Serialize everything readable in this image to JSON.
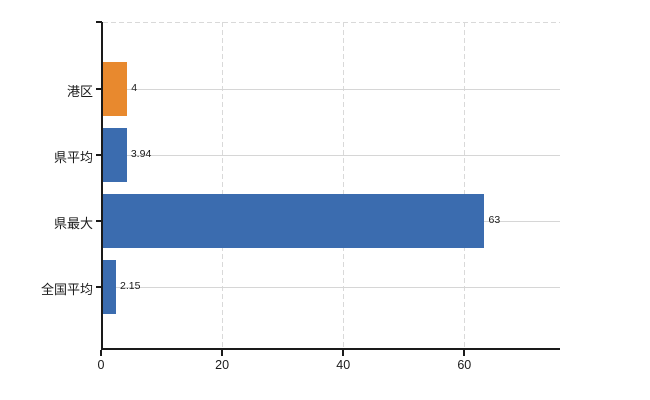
{
  "chart_data": {
    "type": "bar",
    "orientation": "horizontal",
    "title": "",
    "categories": [
      "港区",
      "県平均",
      "県最大",
      "全国平均"
    ],
    "values": [
      4,
      3.94,
      63,
      2.15
    ],
    "value_labels": [
      "4",
      "3.94",
      "63",
      "2.15"
    ],
    "x_ticks": [
      0,
      20,
      40,
      60
    ],
    "x_tick_labels": [
      "0",
      "20",
      "40",
      "60"
    ],
    "xlim": [
      0,
      75.8
    ],
    "legend": "none",
    "grid": {
      "vertical_lines": "dashed at each x tick",
      "horizontal_lines": "solid at each category center",
      "top_border": "dashed"
    },
    "colors": {
      "bars": [
        "#E8892E",
        "#3B6CAF",
        "#3B6CAF",
        "#3B6CAF"
      ],
      "gridline": "#D6D6D6",
      "axis": "#1A1A1A",
      "text": "#1A1A1A"
    }
  }
}
